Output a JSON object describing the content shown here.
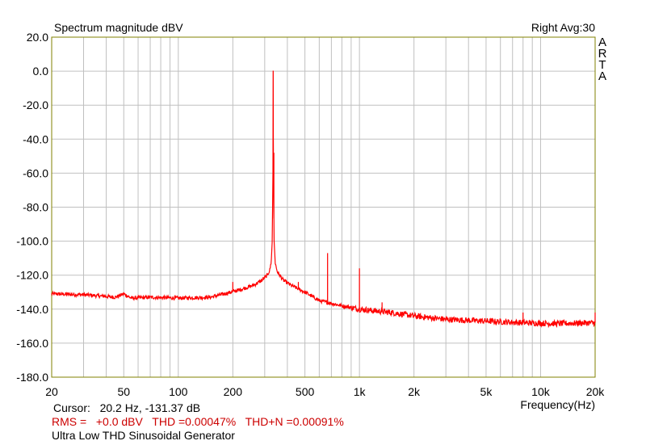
{
  "chart_data": {
    "type": "line",
    "title": "Spectrum magnitude dBV",
    "channel_label": "Right",
    "averaging_label": "Avg:30",
    "xlabel": "Frequency(Hz)",
    "ylabel": "",
    "x_scale": "log",
    "xlim": [
      20,
      20000
    ],
    "ylim": [
      -180,
      20
    ],
    "grid": true,
    "line_color": "#ff0000",
    "plot_border_color": "#808000",
    "x_tick_labels": [
      {
        "value": 20,
        "label": "20"
      },
      {
        "value": 50,
        "label": "50"
      },
      {
        "value": 100,
        "label": "100"
      },
      {
        "value": 200,
        "label": "200"
      },
      {
        "value": 500,
        "label": "500"
      },
      {
        "value": 1000,
        "label": "1k"
      },
      {
        "value": 2000,
        "label": "2k"
      },
      {
        "value": 5000,
        "label": "5k"
      },
      {
        "value": 10000,
        "label": "10k"
      },
      {
        "value": 20000,
        "label": "20k"
      }
    ],
    "y_ticks": [
      20,
      0,
      -20,
      -40,
      -60,
      -80,
      -100,
      -120,
      -140,
      -160,
      -180
    ],
    "y_tick_labels": [
      "20.0",
      "0.0",
      "-20.0",
      "-40.0",
      "-60.0",
      "-80.0",
      "-100.0",
      "-120.0",
      "-140.0",
      "-160.0",
      "-180.0"
    ],
    "series": [
      {
        "noise_floor": [
          [
            20,
            -131
          ],
          [
            30,
            -131.5
          ],
          [
            40,
            -132.5
          ],
          [
            45,
            -133
          ],
          [
            50,
            -131
          ],
          [
            55,
            -133.5
          ],
          [
            70,
            -133
          ],
          [
            100,
            -133.5
          ],
          [
            150,
            -133
          ],
          [
            180,
            -131
          ],
          [
            220,
            -128.5
          ],
          [
            260,
            -126
          ],
          [
            290,
            -123
          ],
          [
            310,
            -120
          ],
          [
            320,
            -117
          ],
          [
            326,
            -112
          ],
          [
            330,
            -100
          ],
          [
            333,
            -60
          ],
          [
            334,
            0
          ],
          [
            335,
            -60
          ],
          [
            338,
            -100
          ],
          [
            343,
            -113
          ],
          [
            352,
            -118
          ],
          [
            380,
            -123
          ],
          [
            420,
            -126
          ],
          [
            500,
            -130
          ],
          [
            600,
            -135
          ],
          [
            800,
            -138
          ],
          [
            1000,
            -140
          ],
          [
            1500,
            -142
          ],
          [
            2000,
            -144
          ],
          [
            3000,
            -146
          ],
          [
            5000,
            -147
          ],
          [
            8000,
            -148
          ],
          [
            12000,
            -148.5
          ],
          [
            20000,
            -148
          ]
        ],
        "spurs": [
          [
            50,
            -130
          ],
          [
            200,
            -124
          ],
          [
            334,
            0
          ],
          [
            337,
            -48
          ],
          [
            460,
            -124
          ],
          [
            667,
            -107
          ],
          [
            1000,
            -116
          ],
          [
            1333,
            -136
          ],
          [
            8000,
            -142
          ],
          [
            20000,
            -142
          ]
        ]
      }
    ]
  },
  "cursor_readout": {
    "label": "Cursor:",
    "value": "20.2 Hz, -131.37 dB"
  },
  "measurements": {
    "rms_label": "RMS =",
    "rms_value": "+0.0 dBV",
    "thd_label": "THD =",
    "thd_value": "0.00047%",
    "thdn_label": "THD+N =",
    "thdn_value": "0.00091%",
    "color": "#cc0000"
  },
  "caption": "Ultra Low THD Sinusoidal Generator",
  "logo_letters": [
    "A",
    "R",
    "T",
    "A"
  ]
}
